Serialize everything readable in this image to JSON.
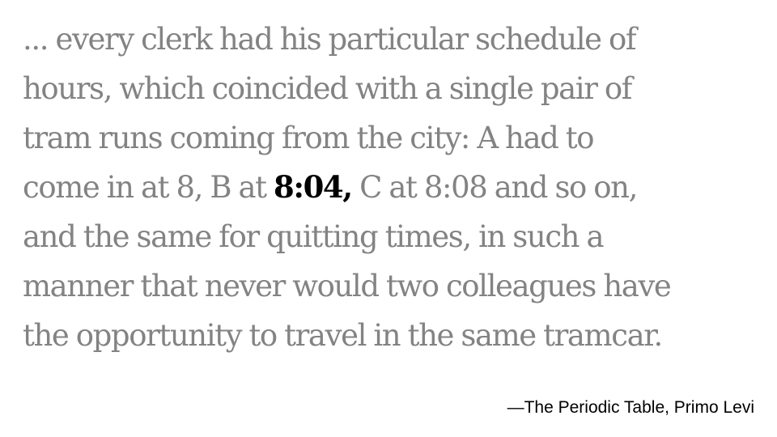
{
  "quote": {
    "lines": [
      "... every clerk had his particular schedule of",
      "hours, which coincided with a single pair of",
      "tram runs coming from the city: A had to"
    ],
    "line4_before": "come in at 8, B at ",
    "line4_highlight": "8:04,",
    "line4_after": " C at 8:08 and so on,",
    "lines_after": [
      "and the same for quitting times, in such a",
      "manner that never would two colleagues have",
      "the opportunity to travel in the same tramcar."
    ],
    "text_color": "#838383",
    "highlight_color": "#000000"
  },
  "attribution": "—The Periodic Table, Primo Levi"
}
